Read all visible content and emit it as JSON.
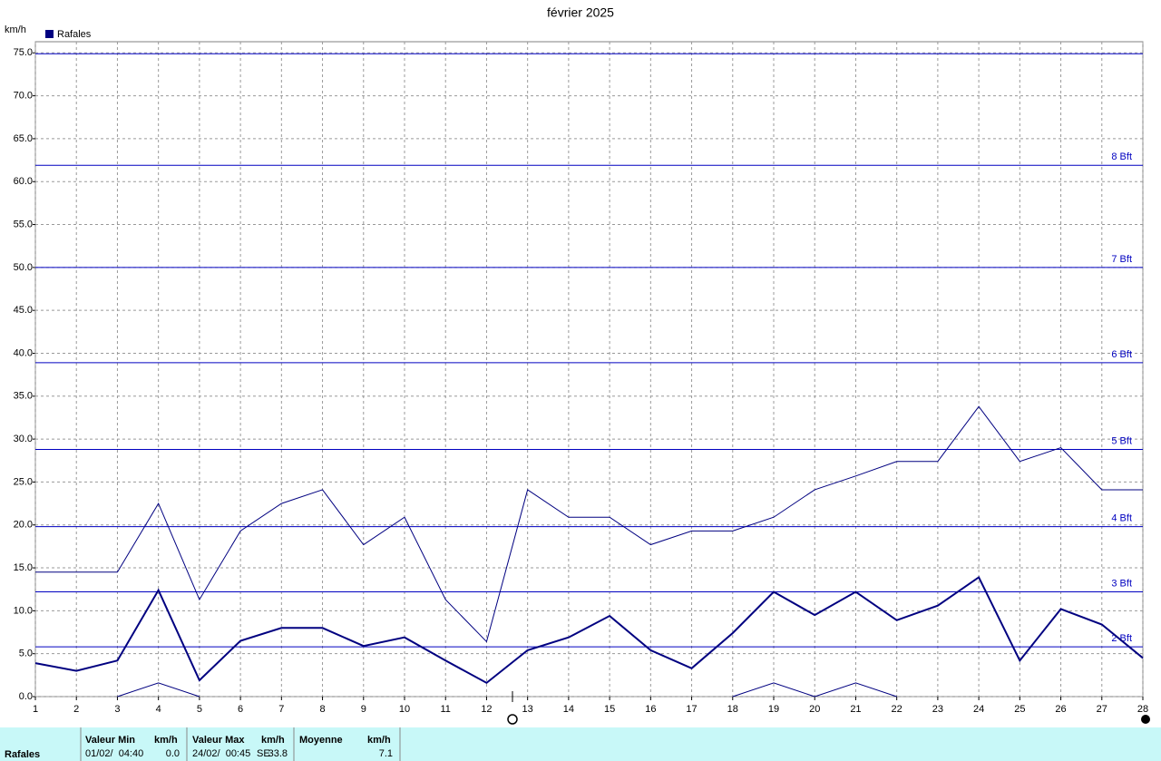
{
  "chart_data": {
    "type": "line",
    "title": "février 2025",
    "y_label": "km/h",
    "x": [
      1,
      2,
      3,
      4,
      5,
      6,
      7,
      8,
      9,
      10,
      11,
      12,
      13,
      14,
      15,
      16,
      17,
      18,
      19,
      20,
      21,
      22,
      23,
      24,
      25,
      26,
      27,
      28
    ],
    "xlim": [
      1,
      28
    ],
    "xticks": [
      1,
      2,
      3,
      4,
      5,
      6,
      7,
      8,
      9,
      10,
      11,
      12,
      13,
      14,
      15,
      16,
      17,
      18,
      19,
      20,
      21,
      22,
      23,
      24,
      25,
      26,
      27,
      28
    ],
    "ylim": [
      0,
      76.3
    ],
    "yticks": [
      {
        "value": 0,
        "label": "0.0"
      },
      {
        "value": 5,
        "label": "5.0"
      },
      {
        "value": 10,
        "label": "10.0"
      },
      {
        "value": 15,
        "label": "15.0"
      },
      {
        "value": 20,
        "label": "20.0"
      },
      {
        "value": 25,
        "label": "25.0"
      },
      {
        "value": 30,
        "label": "30.0"
      },
      {
        "value": 35,
        "label": "35.0"
      },
      {
        "value": 40,
        "label": "40.0"
      },
      {
        "value": 45,
        "label": "45.0"
      },
      {
        "value": 50,
        "label": "50.0"
      },
      {
        "value": 55,
        "label": "55.0"
      },
      {
        "value": 60,
        "label": "60.0"
      },
      {
        "value": 65,
        "label": "65.0"
      },
      {
        "value": 70,
        "label": "70.0"
      },
      {
        "value": 75,
        "label": "75.0"
      }
    ],
    "grid": true,
    "series": [
      {
        "name": "Rafales",
        "color": "#000080",
        "width": 2,
        "values": [
          3.9,
          3.0,
          4.2,
          12.4,
          1.9,
          6.5,
          8.0,
          8.0,
          5.9,
          6.9,
          4.2,
          1.6,
          5.4,
          6.9,
          9.4,
          5.4,
          3.3,
          7.4,
          12.2,
          9.5,
          12.2,
          8.9,
          10.6,
          13.9,
          4.2,
          10.2,
          8.4,
          4.5
        ]
      },
      {
        "color": "#000080",
        "width": 1,
        "values": [
          14.5,
          14.5,
          14.5,
          22.5,
          11.3,
          19.3,
          22.5,
          24.1,
          17.7,
          20.9,
          11.3,
          6.4,
          24.1,
          20.9,
          20.9,
          17.7,
          19.3,
          19.3,
          20.9,
          24.1,
          25.7,
          27.4,
          27.4,
          33.8,
          27.4,
          29.0,
          24.1,
          24.1
        ]
      },
      {
        "color": "#000080",
        "width": 1,
        "values": [
          null,
          null,
          0,
          1.6,
          0,
          null,
          null,
          null,
          null,
          null,
          null,
          null,
          null,
          null,
          null,
          null,
          null,
          0,
          1.6,
          0,
          1.6,
          0,
          null,
          null,
          null,
          null,
          null,
          null
        ]
      }
    ],
    "levels": [
      {
        "value": 5.8,
        "label": "2 Bft"
      },
      {
        "value": 12.2,
        "label": "3 Bft"
      },
      {
        "value": 19.8,
        "label": "4 Bft"
      },
      {
        "value": 28.8,
        "label": "5 Bft"
      },
      {
        "value": 38.9,
        "label": "6 Bft"
      },
      {
        "value": 50.0,
        "label": "7 Bft"
      },
      {
        "value": 61.9,
        "label": "8 Bft"
      },
      {
        "value": 74.9
      }
    ],
    "level_color": "#0000c0"
  },
  "table": {
    "headers": [
      "Valeur Min",
      "km/h",
      "Valeur Max",
      "km/h",
      "Moyenne",
      "km/h"
    ],
    "rows": [
      [
        "Rafales",
        "01/02/  04:40",
        "0.0",
        "24/02/  00:45",
        "SE",
        "33.8",
        "7.1"
      ]
    ]
  }
}
